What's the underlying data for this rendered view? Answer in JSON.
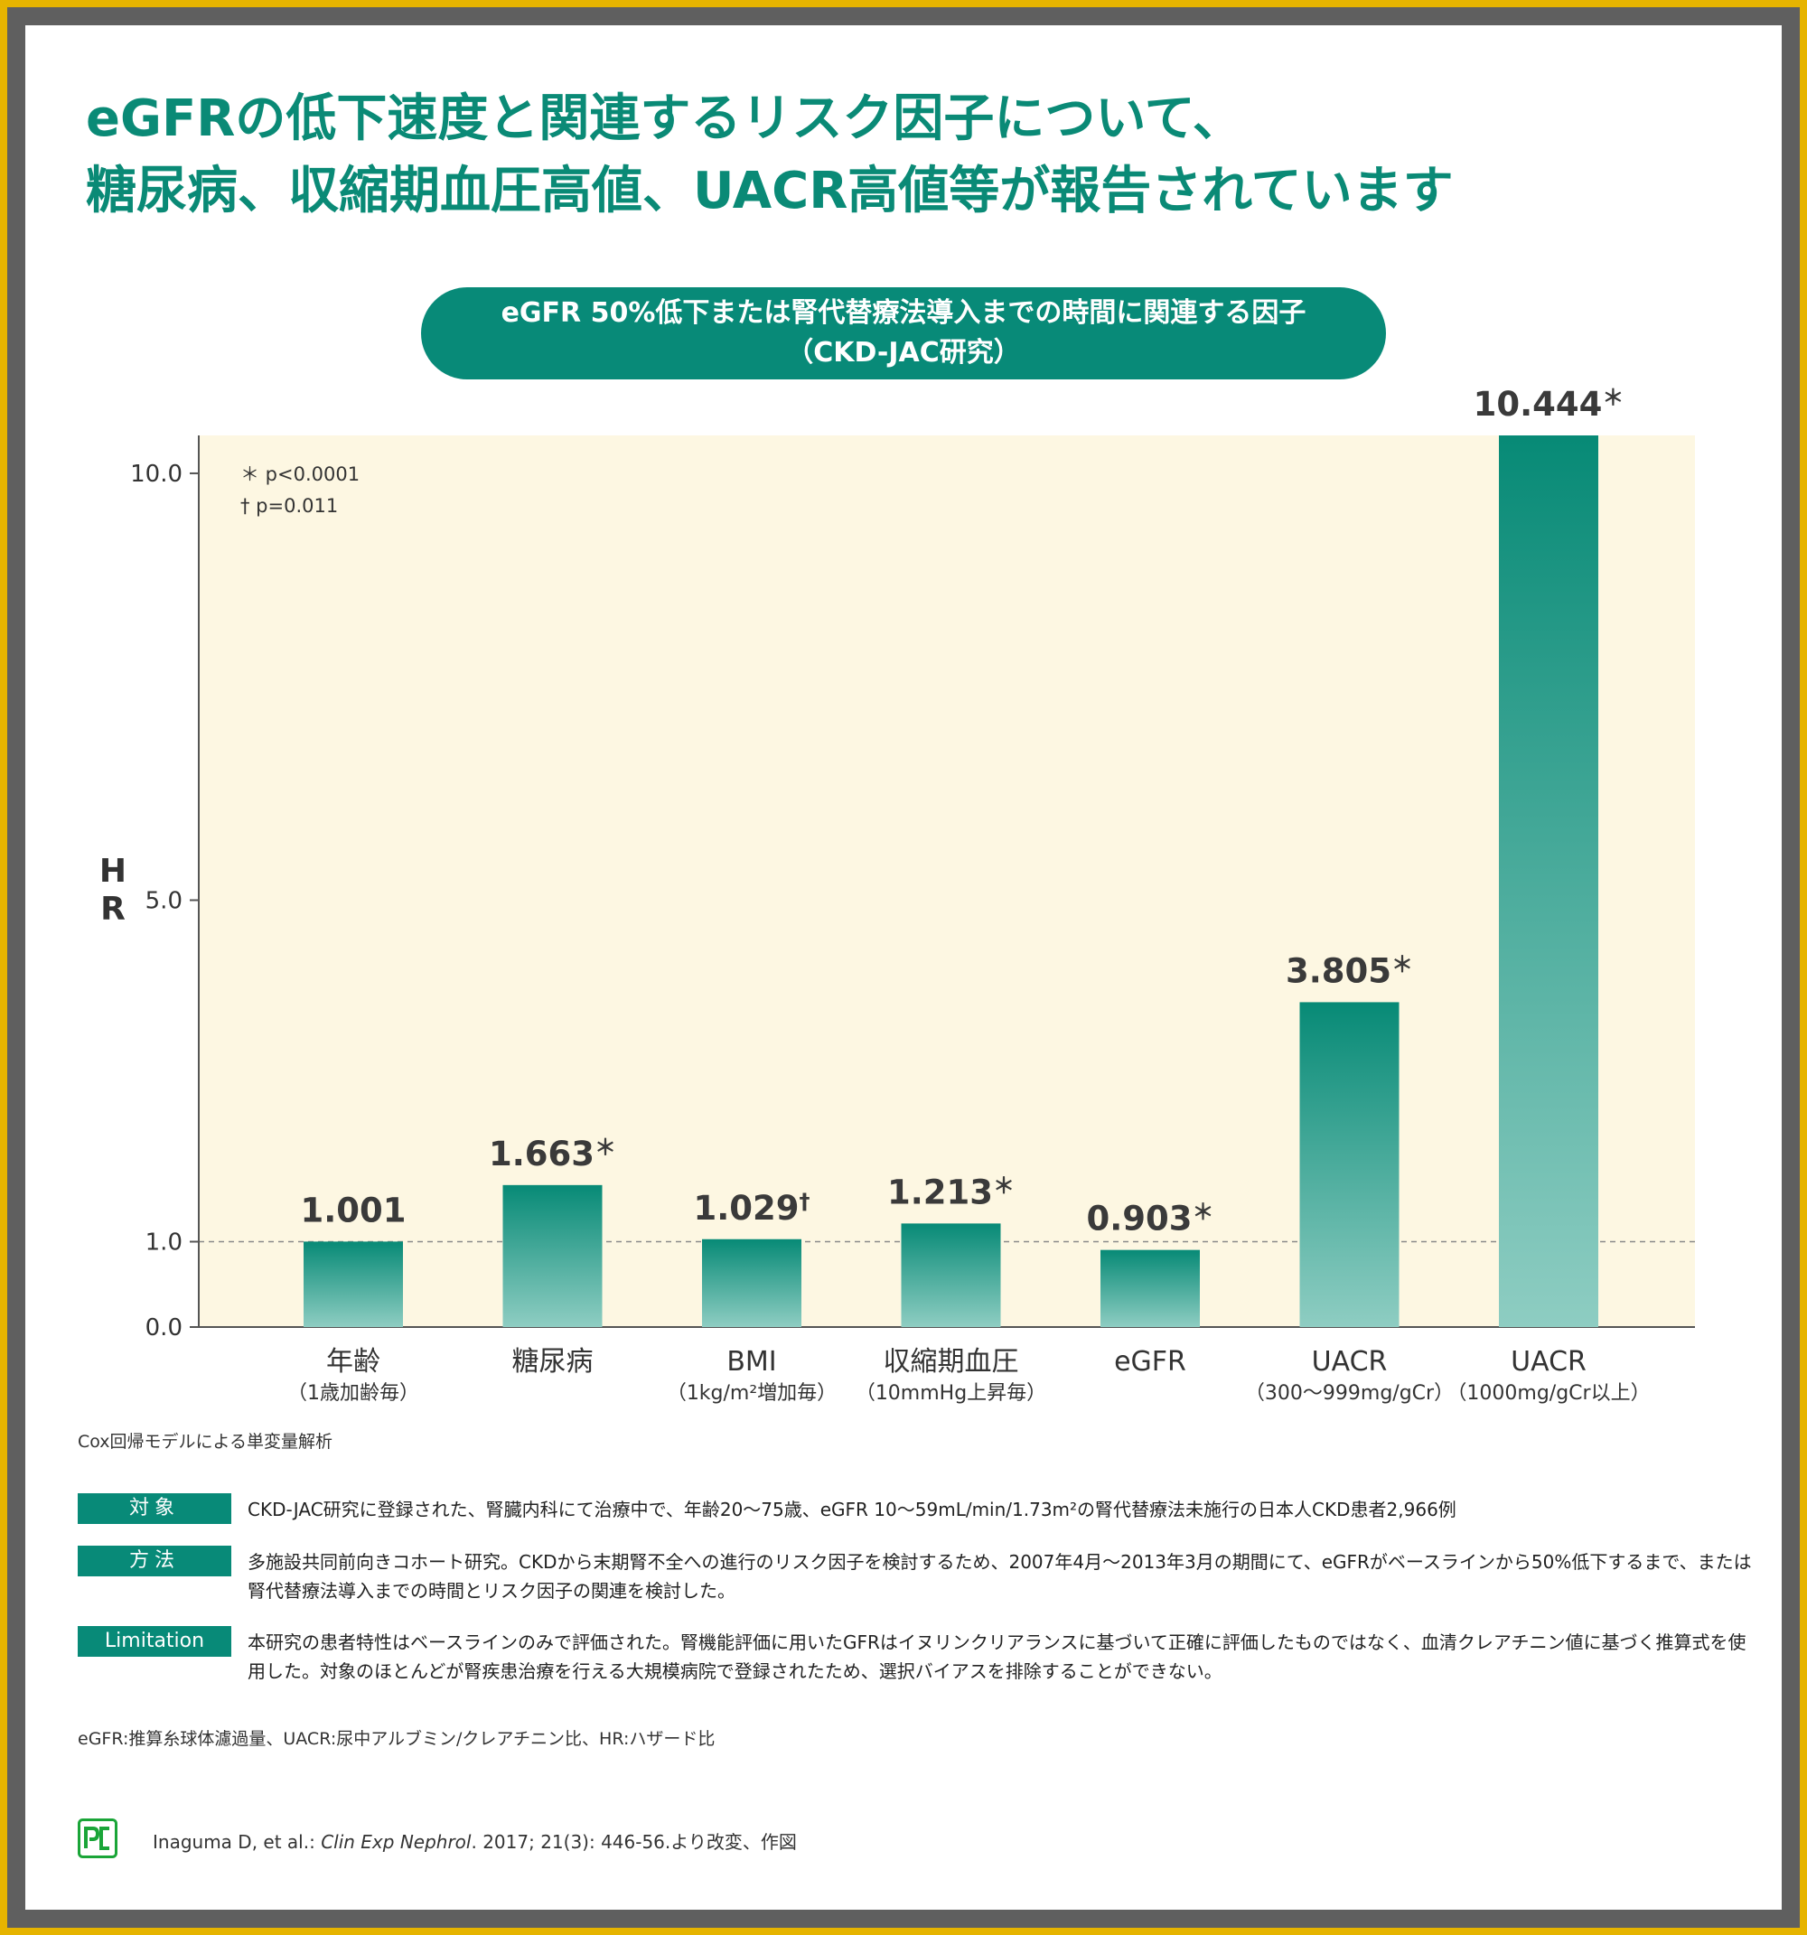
{
  "title": {
    "line1": "eGFRの低下速度と関連するリスク因子について、",
    "line2": "糖尿病、収縮期血圧高値、UACR高値等が報告されています"
  },
  "chart_header": {
    "line1": "eGFR 50%低下または腎代替療法導入までの時間に関連する因子",
    "line2": "（CKD-JAC研究）"
  },
  "chart_data": {
    "type": "bar",
    "ylabel": "HR",
    "ylim": [
      0,
      10.444
    ],
    "yticks": [
      0.0,
      1.0,
      5.0,
      10.0
    ],
    "ytick_labels": [
      "0.0",
      "1.0",
      "5.0",
      "10.0"
    ],
    "reference_line": 1.0,
    "legend_notes": [
      "＊ p<0.0001",
      "† p=0.011"
    ],
    "categories": [
      {
        "label": "年齢",
        "sublabel": "（1歳加齢毎）"
      },
      {
        "label": "糖尿病",
        "sublabel": ""
      },
      {
        "label": "BMI",
        "sublabel": "（1kg/m²増加毎）"
      },
      {
        "label": "収縮期血圧",
        "sublabel": "（10mmHg上昇毎）"
      },
      {
        "label": "eGFR",
        "sublabel": ""
      },
      {
        "label": "UACR",
        "sublabel": "（300〜999mg/gCr）"
      },
      {
        "label": "UACR",
        "sublabel": "（1000mg/gCr以上）"
      }
    ],
    "values": [
      1.001,
      1.663,
      1.029,
      1.213,
      0.903,
      3.805,
      10.444
    ],
    "value_labels": [
      "1.001",
      "1.663",
      "1.029",
      "1.213",
      "0.903",
      "3.805",
      "10.444"
    ],
    "significance": [
      "",
      "＊",
      "†",
      "＊",
      "＊",
      "＊",
      "＊"
    ],
    "colors": {
      "plot_bg": "#fdf7e2",
      "bar_top": "#078a76",
      "bar_bottom": "#8ecdc2"
    }
  },
  "analysis_note": "Cox回帰モデルによる単変量解析",
  "info": [
    {
      "tag": "対象",
      "text": "CKD-JAC研究に登録された、腎臓内科にて治療中で、年齢20〜75歳、eGFR 10〜59mL/min/1.73m²の腎代替療法未施行の日本人CKD患者2,966例"
    },
    {
      "tag": "方法",
      "text": "多施設共同前向きコホート研究。CKDから末期腎不全への進行のリスク因子を検討するため、2007年4月〜2013年3月の期間にて、eGFRがベースラインから50%低下するまで、または腎代替療法導入までの時間とリスク因子の関連を検討した。"
    },
    {
      "tag": "Limitation",
      "text": "本研究の患者特性はベースラインのみで評価された。腎機能評価に用いたGFRはイヌリンクリアランスに基づいて正確に評価したものではなく、血清クレアチニン値に基づく推算式を使用した。対象のほとんどが腎疾患治療を行える大規模病院で登録されたため、選択バイアスを排除することができない。"
    }
  ],
  "abbreviations": "eGFR:推算糸球体濾過量、UACR:尿中アルブミン/クレアチニン比、HR:ハザード比",
  "reference": {
    "logo_text": "PC",
    "authors": "Inaguma D, et al.: ",
    "journal": "Clin Exp Nephrol",
    "details": ". 2017; 21(3): 446-56.より改変、作図"
  }
}
